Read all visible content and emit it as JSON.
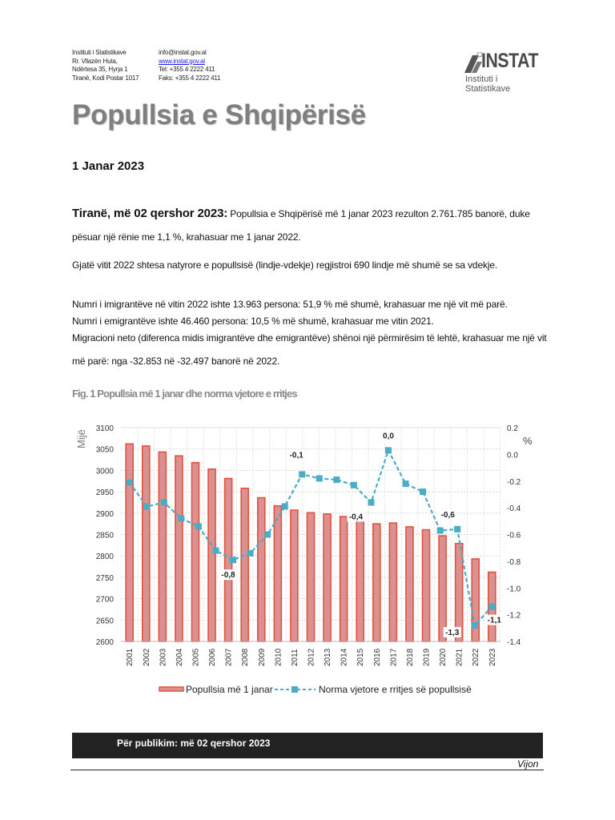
{
  "header": {
    "address": [
      "Instituti i Statistikave",
      "Rr. Vllazën Huta,",
      "Ndërtesa 35, Hyrja 1",
      "Tiranë, Kodi Postar 1017"
    ],
    "email": "info@instat.gov.al",
    "website": "www.instat.gov.al",
    "tel": "Tel: +355 4 2222 411",
    "fax": "Faks: +355 4 2222 411",
    "logo": {
      "name": "INSTAT",
      "subtitle": "Instituti i Statistikave"
    }
  },
  "title": "Popullsia e Shqipërisë",
  "date": "1 Janar 2023",
  "paragraphs": {
    "lead_bold": "Tiranë, më 02 qershor 2023:",
    "lead_text": " Popullsia e Shqipërisë më 1 janar 2023 rezulton 2.761.785 banorë, duke pësuar një rënie me 1,1 %, krahasuar me 1 janar 2022.",
    "natural": "Gjatë vitit 2022 shtesa natyrore e popullsisë (lindje-vdekje) regjistroi 690 lindje më shumë se sa vdekje.",
    "immigrants": "Numri i imigrantëve në vitin 2022 ishte 13.963 persona: 51,9 % më shumë, krahasuar me një vit më parë.",
    "emigrants": "Numri i emigrantëve ishte 46.460 persona: 10,5 % më shumë, krahasuar me vitin 2021.",
    "net_migration": "Migracioni neto (diferenca midis imigrantëve dhe emigrantëve) shënoi një përmirësim të lehtë, krahasuar me një vit më parë: nga -32.853 në -32.497 banorë në 2022."
  },
  "figure_caption": "Fig. 1 Popullsia më 1 janar dhe norma vjetore e rritjes",
  "chart_data": {
    "type": "bar+line",
    "categories": [
      "2001",
      "2002",
      "2003",
      "2004",
      "2005",
      "2006",
      "2007",
      "2008",
      "2009",
      "2010",
      "2011",
      "2012",
      "2013",
      "2014",
      "2015",
      "2016",
      "2017",
      "2018",
      "2019",
      "2020",
      "2021",
      "2022",
      "2023"
    ],
    "ylabel_left": "Mijë",
    "ylabel_right": "%",
    "ylim_left": [
      2600,
      3100
    ],
    "yticks_left": [
      "3100",
      "3050",
      "3000",
      "2950",
      "2900",
      "2850",
      "2800",
      "2750",
      "2700",
      "2650",
      "2600"
    ],
    "ylim_right": [
      -1.4,
      0.2
    ],
    "yticks_right": [
      "0.2",
      "0.0",
      "-0.2",
      "-0.4",
      "-0.6",
      "-0.8",
      "-1.0",
      "-1.2",
      "-1.4"
    ],
    "grid": true,
    "legend_position": "bottom",
    "series": [
      {
        "name": "Popullsia më 1 janar",
        "type": "bar",
        "axis": "left",
        "color": "#e8503a",
        "fill": "#d99191",
        "values": [
          3062,
          3057,
          3043,
          3034,
          3018,
          3003,
          2981,
          2958,
          2936,
          2917,
          2907,
          2901,
          2898,
          2892,
          2885,
          2875,
          2877,
          2868,
          2861,
          2847,
          2829,
          2793,
          2762
        ]
      },
      {
        "name": "Norma vjetore e rritjes së popullsisë",
        "type": "line",
        "axis": "right",
        "color": "#4bacc6",
        "values": [
          null,
          -0.21,
          -0.39,
          -0.36,
          -0.48,
          -0.54,
          -0.72,
          -0.79,
          -0.74,
          -0.6,
          -0.39,
          -0.15,
          -0.18,
          -0.19,
          -0.23,
          -0.36,
          0.03,
          -0.22,
          -0.28,
          -0.57,
          -0.56,
          -1.28,
          -1.14
        ]
      }
    ],
    "data_labels": [
      {
        "category": "2008",
        "text": "-0,8"
      },
      {
        "category": "2012",
        "text": "-0,1"
      },
      {
        "category": "2016",
        "text": "-0,4"
      },
      {
        "category": "2017",
        "text": "0,0"
      },
      {
        "category": "2021",
        "text": "-0,6"
      },
      {
        "category": "2022",
        "text": "-1,3"
      },
      {
        "category": "2023",
        "text": "-1,1"
      }
    ]
  },
  "footer": {
    "publication": "Për publikim: më 02 qershor 2023",
    "continue": "Vijon"
  }
}
